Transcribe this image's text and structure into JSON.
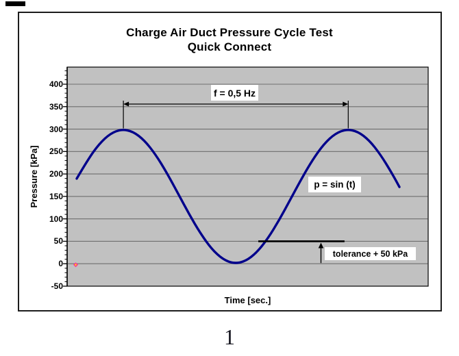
{
  "page": {
    "number": "1"
  },
  "title": {
    "line1": "Charge Air Duct Pressure Cycle Test",
    "line2": "Quick Connect"
  },
  "axes": {
    "y_title": "Pressure [kPa]",
    "x_title": "Time [sec.]"
  },
  "labels": {
    "frequency": "f = 0,5 Hz",
    "equation": "p = sin (t)",
    "tolerance": "tolerance + 50 kPa"
  },
  "colors": {
    "plot_background": "#c1c1c1",
    "gridline": "#6e6e6e",
    "curve": "#00008b",
    "axis": "#000000",
    "annotation": "#000000",
    "marker_outer": "#ff2d9a",
    "marker_inner": "#ffe400"
  },
  "chart_data": {
    "type": "line",
    "title": "Charge Air Duct Pressure Cycle Test",
    "subtitle": "Quick Connect",
    "xlabel": "Time [sec.]",
    "ylabel": "Pressure [kPa]",
    "ylim": [
      -50,
      438
    ],
    "y_ticks": [
      400,
      350,
      300,
      250,
      200,
      150,
      100,
      50,
      0,
      -50
    ],
    "y_minor_tick_step": 10,
    "x_tick_labels_visible": false,
    "grid": "horizontal-major",
    "legend": "none",
    "frequency_hz": 0.5,
    "amplitude_kpa": 150,
    "offset_kpa": 150,
    "peak_kpa": 300,
    "trough_kpa": 0,
    "tolerance_kpa": 50,
    "peak_times_sec": [
      0.415,
      2.415
    ],
    "trough_time_sec": 1.415,
    "tolerance_line_t_range": [
      1.615,
      2.382
    ],
    "t_range_sec": [
      0,
      2.87
    ],
    "origin_marker": {
      "t": 0,
      "p": 0
    },
    "series": [
      {
        "name": "p = sin (t)",
        "color": "#00008b",
        "points": [
          [
            0.0,
            189.7
          ],
          [
            0.1,
            232.3
          ],
          [
            0.2,
            267.1
          ],
          [
            0.3,
            290.3
          ],
          [
            0.4,
            299.8
          ],
          [
            0.5,
            294.7
          ],
          [
            0.6,
            275.4
          ],
          [
            0.7,
            243.8
          ],
          [
            0.8,
            203.1
          ],
          [
            0.9,
            157.1
          ],
          [
            1.0,
            110.3
          ],
          [
            1.1,
            67.7
          ],
          [
            1.2,
            32.9
          ],
          [
            1.3,
            9.7
          ],
          [
            1.4,
            0.2
          ],
          [
            1.5,
            5.3
          ],
          [
            1.6,
            24.6
          ],
          [
            1.7,
            56.2
          ],
          [
            1.8,
            96.9
          ],
          [
            1.9,
            142.9
          ],
          [
            2.0,
            189.7
          ],
          [
            2.1,
            232.3
          ],
          [
            2.2,
            267.1
          ],
          [
            2.3,
            290.3
          ],
          [
            2.4,
            299.8
          ],
          [
            2.5,
            294.7
          ],
          [
            2.6,
            275.4
          ],
          [
            2.7,
            243.8
          ],
          [
            2.8,
            203.1
          ],
          [
            2.87,
            171.0
          ]
        ]
      }
    ]
  }
}
